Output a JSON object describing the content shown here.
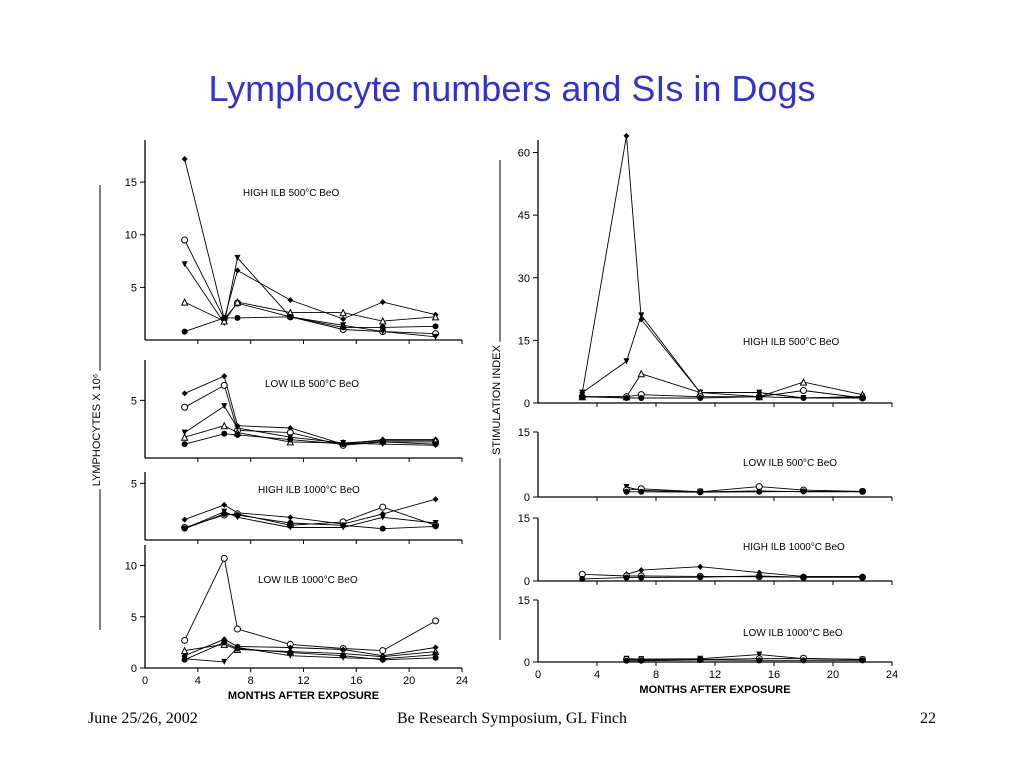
{
  "slide": {
    "title": "Lymphocyte numbers and SIs in Dogs",
    "footer_left": "June 25/26, 2002",
    "footer_center": "Be Research Symposium, GL Finch",
    "footer_right": "22",
    "title_color": "#3333cc"
  },
  "chart_data": [
    {
      "type": "line",
      "title": "HIGH ILB 500°C BeO",
      "ylabel": "LYMPHOCYTES X 10⁶",
      "ylim": [
        0,
        19
      ],
      "yticks": [
        5,
        10,
        15
      ],
      "series": [
        {
          "marker": "diamond",
          "x": [
            3,
            6,
            7,
            11,
            15,
            18,
            22
          ],
          "y": [
            17.2,
            2,
            6.6,
            3.8,
            2,
            3.6,
            2.4
          ]
        },
        {
          "marker": "open-circle",
          "x": [
            3,
            6,
            7,
            11,
            15,
            18,
            22
          ],
          "y": [
            9.5,
            2,
            3.5,
            2.2,
            1,
            0.8,
            0.6
          ]
        },
        {
          "marker": "triangle-down",
          "x": [
            3,
            6,
            7,
            11,
            15,
            18,
            22
          ],
          "y": [
            7.2,
            1.6,
            7.8,
            2.2,
            1.4,
            0.8,
            0.3
          ]
        },
        {
          "marker": "open-triangle",
          "x": [
            3,
            6,
            7,
            11,
            15,
            18,
            22
          ],
          "y": [
            3.6,
            1.8,
            3.6,
            2.6,
            2.6,
            1.8,
            2.2
          ]
        },
        {
          "marker": "filled-circle",
          "x": [
            3,
            6,
            7,
            11,
            15,
            18,
            22
          ],
          "y": [
            0.8,
            2.1,
            2.1,
            2.2,
            1.2,
            1.2,
            1.3
          ]
        }
      ]
    },
    {
      "type": "line",
      "title": "LOW ILB 500°C BeO",
      "ylim": [
        0,
        8.5
      ],
      "yticks": [
        5
      ],
      "series": [
        {
          "marker": "diamond",
          "x": [
            3,
            6,
            7,
            11,
            15,
            18,
            22
          ],
          "y": [
            5.6,
            7.1,
            2.8,
            2.6,
            1.2,
            1.6,
            1.6
          ]
        },
        {
          "marker": "open-circle",
          "x": [
            3,
            6,
            7,
            11,
            15,
            18,
            22
          ],
          "y": [
            4.4,
            6.3,
            2.4,
            2.2,
            1.1,
            1.4,
            1.4
          ]
        },
        {
          "marker": "triangle-down",
          "x": [
            3,
            6,
            7,
            11,
            15,
            18,
            22
          ],
          "y": [
            2.2,
            4.5,
            2.6,
            1.8,
            1.3,
            1.2,
            1.1
          ]
        },
        {
          "marker": "open-triangle",
          "x": [
            3,
            6,
            7,
            11,
            15,
            18,
            22
          ],
          "y": [
            1.8,
            2.8,
            2.2,
            1.4,
            1.3,
            1.5,
            1.5
          ]
        },
        {
          "marker": "filled-circle",
          "x": [
            3,
            6,
            7,
            11,
            15,
            18,
            22
          ],
          "y": [
            1.2,
            2.1,
            2.0,
            1.6,
            1.2,
            1.4,
            1.2
          ]
        }
      ]
    },
    {
      "type": "line",
      "title": "HIGH ILB 1000°C BeO",
      "ylim": [
        0,
        6
      ],
      "yticks": [
        5
      ],
      "series": [
        {
          "marker": "diamond",
          "x": [
            3,
            6,
            7,
            11,
            15,
            18,
            22
          ],
          "y": [
            1.8,
            3.1,
            2.4,
            2.0,
            1.4,
            2.3,
            3.6
          ]
        },
        {
          "marker": "open-circle",
          "x": [
            3,
            6,
            7,
            11,
            15,
            18,
            22
          ],
          "y": [
            1.1,
            2.2,
            2.3,
            1.3,
            1.6,
            2.9,
            1.3
          ]
        },
        {
          "marker": "triangle-down",
          "x": [
            3,
            6,
            7,
            11,
            15,
            18,
            22
          ],
          "y": [
            1.0,
            2.5,
            2.0,
            1.1,
            1.1,
            2.0,
            1.5
          ]
        },
        {
          "marker": "filled-circle",
          "x": [
            3,
            6,
            7,
            11,
            15,
            18,
            22
          ],
          "y": [
            1.0,
            2.3,
            2.2,
            1.5,
            1.3,
            1.0,
            1.2
          ]
        }
      ]
    },
    {
      "type": "line",
      "title": "LOW ILB 1000°C BeO",
      "xlabel": "MONTHS AFTER EXPOSURE",
      "xlim": [
        0,
        24
      ],
      "xticks": [
        0,
        4,
        8,
        12,
        16,
        20,
        24
      ],
      "ylim": [
        0,
        12
      ],
      "yticks": [
        0,
        5,
        10
      ],
      "series": [
        {
          "marker": "open-circle",
          "x": [
            3,
            6,
            7,
            11,
            15,
            18,
            22
          ],
          "y": [
            2.7,
            10.7,
            3.8,
            2.3,
            1.9,
            1.7,
            4.6
          ]
        },
        {
          "marker": "diamond",
          "x": [
            3,
            6,
            7,
            11,
            15,
            18,
            22
          ],
          "y": [
            1.2,
            2.8,
            2.1,
            2.0,
            1.8,
            1.2,
            2.0
          ]
        },
        {
          "marker": "open-triangle",
          "x": [
            3,
            6,
            7,
            11,
            15,
            18,
            22
          ],
          "y": [
            1.7,
            2.3,
            1.8,
            1.6,
            1.4,
            1.1,
            1.6
          ]
        },
        {
          "marker": "triangle-down",
          "x": [
            3,
            6,
            7,
            11,
            15,
            18,
            22
          ],
          "y": [
            0.9,
            0.6,
            2.0,
            1.2,
            1.0,
            0.9,
            1.3
          ]
        },
        {
          "marker": "filled-circle",
          "x": [
            3,
            6,
            7,
            11,
            15,
            18,
            22
          ],
          "y": [
            0.8,
            2.5,
            1.9,
            1.5,
            1.2,
            0.8,
            1.0
          ]
        }
      ]
    },
    {
      "type": "line",
      "title": "HIGH ILB 500°C BeO",
      "ylabel": "STIMULATION INDEX",
      "ylim": [
        0,
        63
      ],
      "yticks": [
        0,
        15,
        30,
        45,
        60
      ],
      "series": [
        {
          "marker": "diamond",
          "x": [
            3,
            6,
            7,
            11,
            15,
            18,
            22
          ],
          "y": [
            2.5,
            64,
            20,
            2.5,
            2.5,
            1.2,
            1.5
          ]
        },
        {
          "marker": "triangle-down",
          "x": [
            3,
            6,
            7,
            11,
            15,
            18,
            22
          ],
          "y": [
            2.5,
            10,
            21,
            2.5,
            2.5,
            1.2,
            1.5
          ]
        },
        {
          "marker": "open-triangle",
          "x": [
            3,
            6,
            7,
            11,
            15,
            18,
            22
          ],
          "y": [
            1.5,
            1.5,
            7,
            2.5,
            1.5,
            5,
            2
          ]
        },
        {
          "marker": "open-circle",
          "x": [
            3,
            6,
            7,
            11,
            15,
            18,
            22
          ],
          "y": [
            1.5,
            1.5,
            2,
            1.5,
            1.5,
            3,
            1.2
          ]
        },
        {
          "marker": "filled-circle",
          "x": [
            3,
            6,
            7,
            11,
            15,
            18,
            22
          ],
          "y": [
            1.5,
            1.2,
            1.2,
            1.2,
            1.5,
            1.2,
            1.2
          ]
        }
      ]
    },
    {
      "type": "line",
      "title": "LOW ILB 500°C BeO",
      "ylim": [
        0,
        15
      ],
      "yticks": [
        0,
        15
      ],
      "series": [
        {
          "marker": "triangle-down",
          "x": [
            6,
            7,
            11,
            15,
            18,
            22
          ],
          "y": [
            2.3,
            1.5,
            1.2,
            1.4,
            1.2,
            1.2
          ]
        },
        {
          "marker": "open-circle",
          "x": [
            6,
            7,
            11,
            15,
            18,
            22
          ],
          "y": [
            1.6,
            1.9,
            1.2,
            2.4,
            1.6,
            1.3
          ]
        },
        {
          "marker": "filled-circle",
          "x": [
            6,
            7,
            11,
            15,
            18,
            22
          ],
          "y": [
            1.2,
            1.2,
            1.1,
            1.2,
            1.3,
            1.3
          ]
        }
      ]
    },
    {
      "type": "line",
      "title": "HIGH ILB 1000°C BeO",
      "ylim": [
        0,
        15
      ],
      "yticks": [
        0,
        15
      ],
      "series": [
        {
          "marker": "diamond",
          "x": [
            6,
            7,
            11,
            15,
            18,
            22
          ],
          "y": [
            1.6,
            2.6,
            3.4,
            2.0,
            1.1,
            1.1
          ]
        },
        {
          "marker": "open-circle",
          "x": [
            3,
            6,
            7,
            11,
            15,
            18,
            22
          ],
          "y": [
            1.6,
            1.2,
            1.2,
            1.1,
            1.0,
            0.9,
            0.9
          ]
        },
        {
          "marker": "filled-circle",
          "x": [
            3,
            6,
            7,
            11,
            15,
            18,
            22
          ],
          "y": [
            0.5,
            0.8,
            0.8,
            0.9,
            1.2,
            0.9,
            0.9
          ]
        }
      ]
    },
    {
      "type": "line",
      "title": "LOW ILB 1000°C BeO",
      "xlabel": "MONTHS AFTER EXPOSURE",
      "xlim": [
        0,
        24
      ],
      "xticks": [
        0,
        4,
        8,
        12,
        16,
        20,
        24
      ],
      "ylim": [
        0,
        15
      ],
      "yticks": [
        0,
        15
      ],
      "series": [
        {
          "marker": "triangle-down",
          "x": [
            6,
            7,
            11,
            15,
            18,
            22
          ],
          "y": [
            0.8,
            0.7,
            0.8,
            1.8,
            0.8,
            0.6
          ]
        },
        {
          "marker": "open-circle",
          "x": [
            6,
            7,
            11,
            15,
            18,
            22
          ],
          "y": [
            0.6,
            0.5,
            0.6,
            0.8,
            0.9,
            0.6
          ]
        },
        {
          "marker": "filled-circle",
          "x": [
            6,
            7,
            11,
            15,
            18,
            22
          ],
          "y": [
            0.3,
            0.3,
            0.5,
            0.4,
            0.4,
            0.4
          ]
        }
      ]
    }
  ]
}
